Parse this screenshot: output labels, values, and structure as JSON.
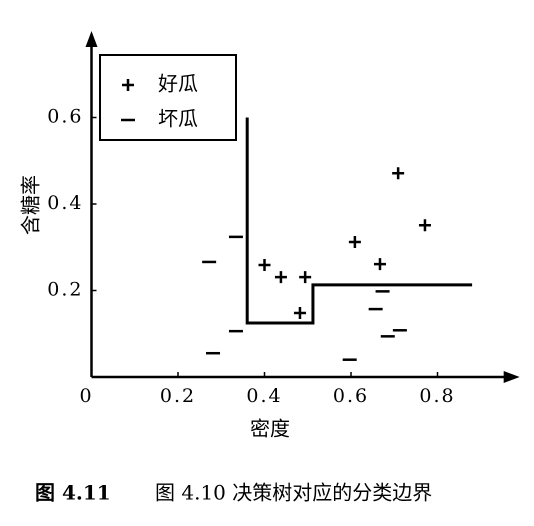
{
  "chart_data": {
    "type": "scatter",
    "x_label": "密度",
    "y_label": "含糖率",
    "xlim": [
      0,
      0.99
    ],
    "ylim": [
      0,
      0.8
    ],
    "xticks": [
      0,
      0.2,
      0.4,
      0.6,
      0.8
    ],
    "yticks": [
      0.2,
      0.4,
      0.6
    ],
    "series": [
      {
        "name": "好瓜",
        "color": "#000000",
        "marker": "plus",
        "x": [
          0.4,
          0.438,
          0.494,
          0.482,
          0.609,
          0.667,
          0.709,
          0.771
        ],
        "values": [
          0.259,
          0.231,
          0.231,
          0.148,
          0.312,
          0.261,
          0.471,
          0.351
        ]
      },
      {
        "name": "坏瓜",
        "color": "#000000",
        "marker": "minus",
        "x": [
          0.272,
          0.281,
          0.334,
          0.334,
          0.597,
          0.657,
          0.673,
          0.685,
          0.713
        ],
        "values": [
          0.266,
          0.055,
          0.324,
          0.106,
          0.04,
          0.157,
          0.198,
          0.094,
          0.108
        ]
      }
    ],
    "boundary": {
      "color": "#000000",
      "x": [
        0.36,
        0.36,
        0.512,
        0.512,
        0.88
      ],
      "values": [
        0.6,
        0.125,
        0.125,
        0.213,
        0.213
      ]
    },
    "caption_label": "图 4.11",
    "caption_text": "图 4.10 决策树对应的分类边界"
  }
}
